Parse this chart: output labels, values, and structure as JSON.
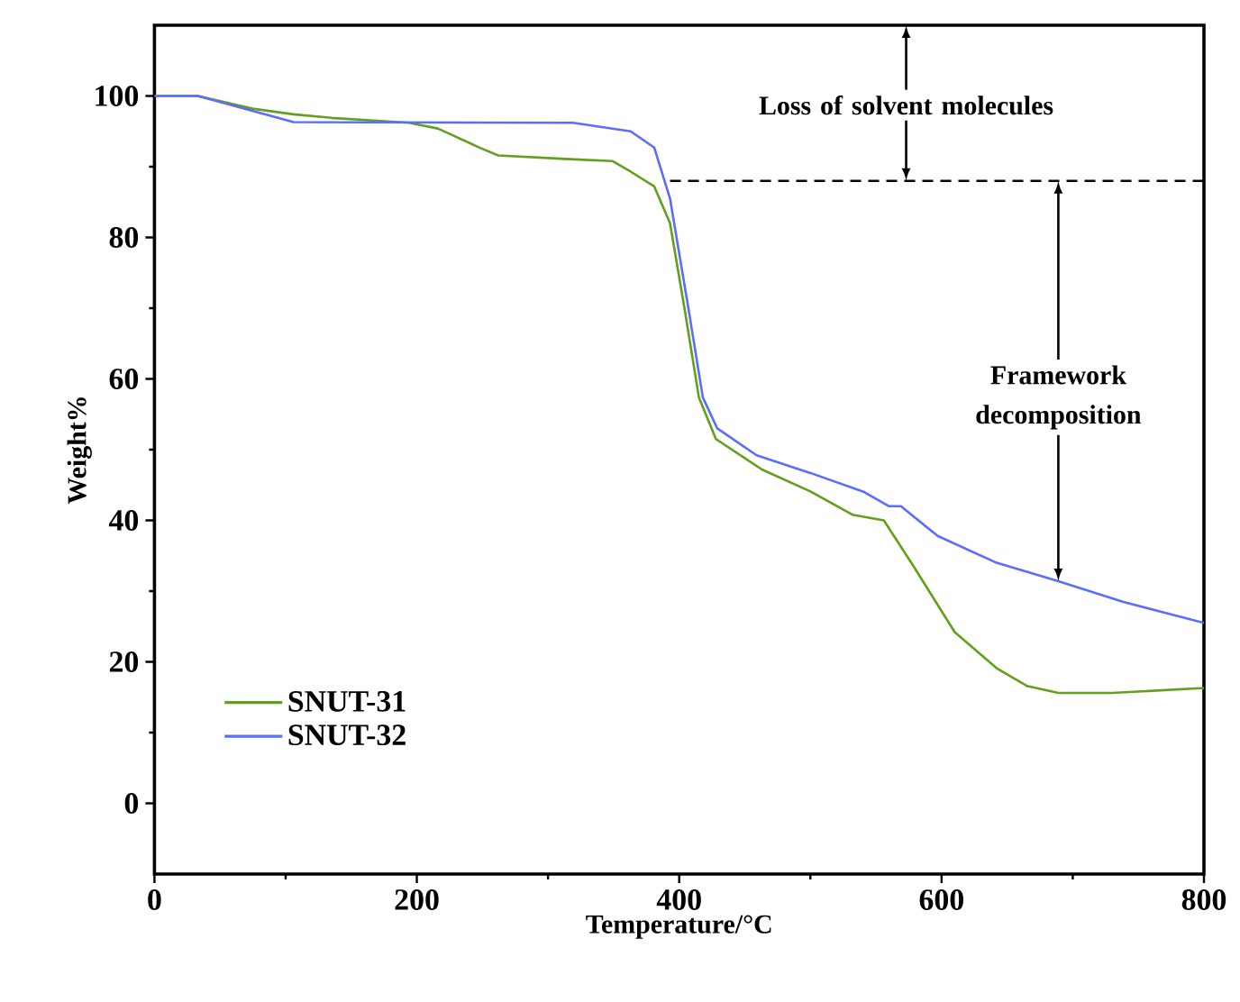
{
  "chart_data": {
    "type": "line",
    "xlabel": "Temperature/°C",
    "ylabel": "Weight%",
    "xlim": [
      0,
      800
    ],
    "ylim": [
      -10,
      110
    ],
    "xticks": [
      0,
      200,
      400,
      600,
      800
    ],
    "yticks": [
      0,
      20,
      40,
      60,
      80,
      100
    ],
    "legend": "bottom left",
    "grid": false,
    "series": [
      {
        "name": "SNUT-31",
        "color": "#62a01c",
        "x": [
          0,
          33,
          75,
          106,
          135,
          194,
          216,
          249,
          262,
          313,
          349,
          363,
          381,
          393,
          404,
          415,
          428,
          463,
          500,
          532,
          556,
          578,
          610,
          642,
          665,
          689,
          730,
          800
        ],
        "values": [
          100,
          100,
          98.2,
          97.4,
          96.9,
          96.2,
          95.4,
          92.6,
          91.6,
          91.1,
          90.8,
          89.3,
          87.2,
          82,
          70,
          57.4,
          51.5,
          47.2,
          44.1,
          40.8,
          40,
          33.7,
          24.2,
          19.1,
          16.6,
          15.6,
          15.6,
          16.3
        ]
      },
      {
        "name": "SNUT-32",
        "color": "#5b6cff",
        "x": [
          0,
          33,
          106,
          319,
          363,
          381,
          393,
          407,
          418,
          429,
          459,
          500,
          541,
          560,
          569,
          597,
          642,
          689,
          738,
          800
        ],
        "values": [
          100,
          100,
          96.3,
          96.2,
          95,
          92.7,
          85.5,
          70,
          57.4,
          53,
          49.2,
          46.7,
          44,
          42,
          42,
          37.8,
          34,
          31.4,
          28.5,
          25.5
        ]
      },
      {
        "type": "line",
        "color": "#000000",
        "line_style": "dashed",
        "x": [
          393,
          800
        ],
        "values": [
          88,
          88
        ]
      }
    ],
    "annotations": [
      "Loss of solvent molecules",
      "Framework decomposition"
    ]
  }
}
